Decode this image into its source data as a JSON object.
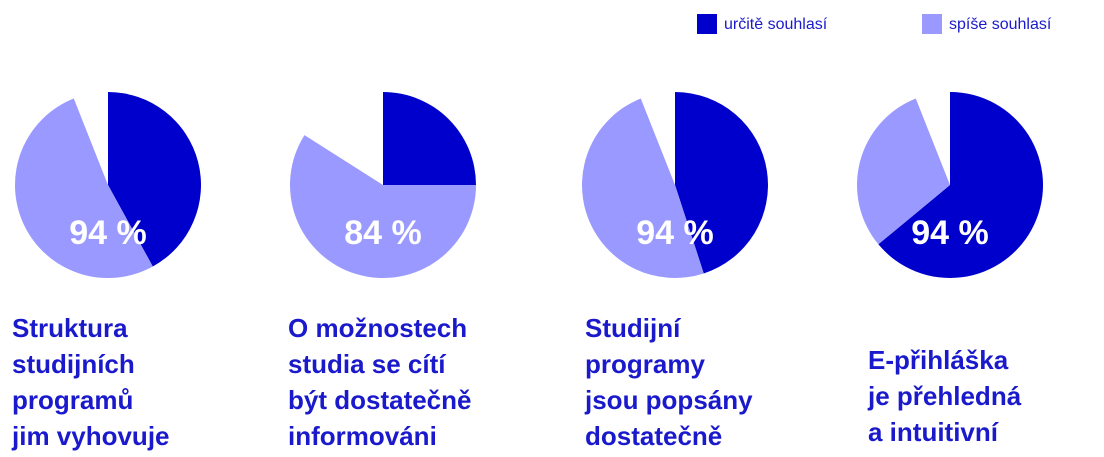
{
  "chart_data": [
    {
      "type": "pie",
      "title": [
        "Struktura",
        "studijních",
        "programů",
        "jim vyhovuje"
      ],
      "categories": [
        "určitě souhlasí",
        "spíše souhlasí"
      ],
      "colors": [
        "#0000cc",
        "#9999ff"
      ],
      "values": [
        42,
        52
      ],
      "total": 94,
      "total_label": "94 %"
    },
    {
      "type": "pie",
      "title": [
        "O možnostech",
        "studia se cítí",
        "být dostatečně",
        "informováni"
      ],
      "categories": [
        "určitě souhlasí",
        "spíše souhlasí"
      ],
      "colors": [
        "#0000cc",
        "#9999ff"
      ],
      "values": [
        25,
        59
      ],
      "total": 84,
      "total_label": "84 %"
    },
    {
      "type": "pie",
      "title": [
        "Studijní",
        "programy",
        "jsou popsány",
        "dostatečně"
      ],
      "categories": [
        "určitě souhlasí",
        "spíše souhlasí"
      ],
      "colors": [
        "#0000cc",
        "#9999ff"
      ],
      "values": [
        45,
        49
      ],
      "total": 94,
      "total_label": "94 %"
    },
    {
      "type": "pie",
      "title": [
        "E-přihláška",
        "je přehledná",
        "a intuitivní"
      ],
      "categories": [
        "určitě souhlasí",
        "spíše souhlasí"
      ],
      "colors": [
        "#0000cc",
        "#9999ff"
      ],
      "values": [
        64,
        30
      ],
      "total": 94,
      "total_label": "94 %"
    }
  ]
}
